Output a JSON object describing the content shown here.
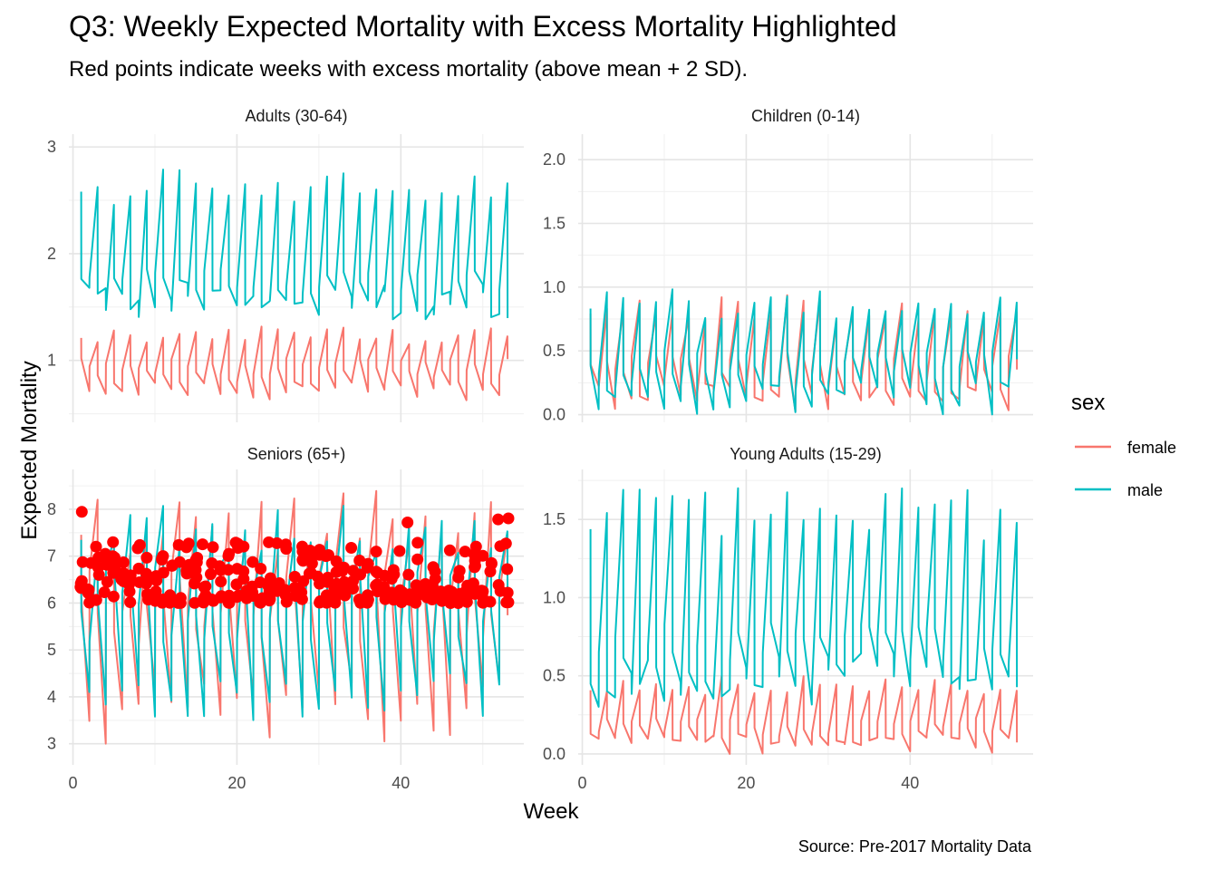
{
  "chart_data": {
    "type": "line",
    "title": "Q3: Weekly Expected Mortality with Excess Mortality Highlighted",
    "subtitle": "Red points indicate weeks with excess mortality (above mean + 2 SD).",
    "xlabel": "Week",
    "ylabel": "Expected Mortality",
    "caption": "Source: Pre-2017 Mortality Data",
    "legend": {
      "title": "sex",
      "position": "right",
      "entries": [
        {
          "label": "female",
          "color": "#F8766D"
        },
        {
          "label": "male",
          "color": "#00BFC4"
        }
      ]
    },
    "excess_point_color": "#FF0000",
    "grid": true,
    "x_shared": {
      "range": [
        -0.5,
        55
      ],
      "ticks": [
        0,
        20,
        40
      ],
      "tick_labels": [
        "0",
        "20",
        "40"
      ]
    },
    "facets": [
      {
        "name": "Adults (30-64)",
        "ylim": [
          0.42,
          3.12
        ],
        "yticks": [
          1,
          2,
          3
        ],
        "ytick_labels": [
          "1",
          "2",
          "3"
        ],
        "series": [
          {
            "name": "female",
            "low": 0.62,
            "high": 1.32,
            "mean": 0.9
          },
          {
            "name": "male",
            "low": 1.42,
            "high": 2.8,
            "mean": 1.62
          }
        ],
        "excess_points": false
      },
      {
        "name": "Children (0-14)",
        "ylim": [
          -0.06,
          2.2
        ],
        "yticks": [
          0,
          0.5,
          1,
          1.5,
          2
        ],
        "ytick_labels": [
          "0.0",
          "0.5",
          "1.0",
          "1.5",
          "2.0"
        ],
        "series": [
          {
            "name": "female",
            "low": 0.0,
            "high": 0.95,
            "mean": 0.3
          },
          {
            "name": "male",
            "low": 0.0,
            "high": 1.0,
            "mean": 0.35
          }
        ],
        "excess_points": false
      },
      {
        "name": "Seniors (65+)",
        "ylim": [
          2.55,
          8.85
        ],
        "yticks": [
          3,
          4,
          5,
          6,
          7,
          8
        ],
        "ytick_labels": [
          "3",
          "4",
          "5",
          "6",
          "7",
          "8"
        ],
        "series": [
          {
            "name": "female",
            "low": 3.0,
            "high": 8.4,
            "mean": 6.0
          },
          {
            "name": "male",
            "low": 3.4,
            "high": 8.2,
            "mean": 6.0
          }
        ],
        "excess_points": true
      },
      {
        "name": "Young Adults (15-29)",
        "ylim": [
          -0.07,
          1.82
        ],
        "yticks": [
          0,
          0.5,
          1,
          1.5
        ],
        "ytick_labels": [
          "0.0",
          "0.5",
          "1.0",
          "1.5"
        ],
        "series": [
          {
            "name": "female",
            "low": 0.0,
            "high": 0.5,
            "mean": 0.15
          },
          {
            "name": "male",
            "low": 0.3,
            "high": 1.7,
            "mean": 0.6
          }
        ],
        "excess_points": false
      }
    ]
  }
}
